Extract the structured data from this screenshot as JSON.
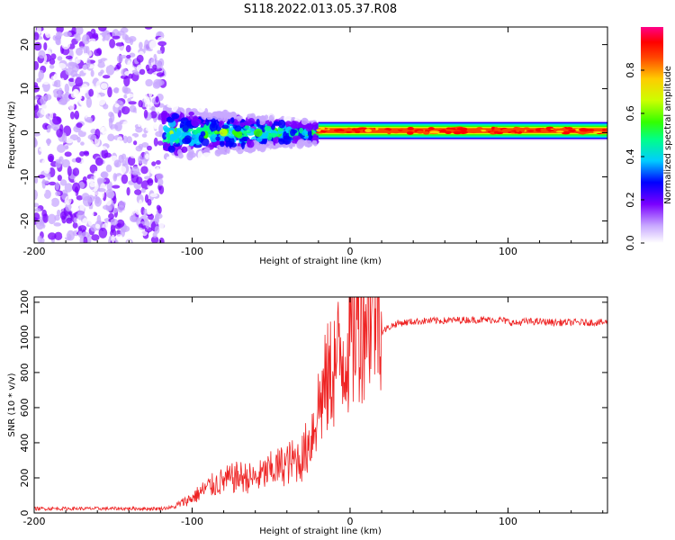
{
  "title": "S118.2022.013.05.37.R08",
  "chart_data": [
    {
      "type": "heatmap",
      "name": "spectrogram",
      "xlabel": "Height of straight line (km)",
      "ylabel": "Frequency (Hz)",
      "xlim": [
        -200,
        163
      ],
      "ylim": [
        -25,
        24
      ],
      "xticks": [
        -200,
        -100,
        0,
        100
      ],
      "xtick_labels": [
        "-200",
        "-100",
        "0",
        "100"
      ],
      "yticks": [
        -20,
        -10,
        0,
        10,
        20
      ],
      "ytick_labels": [
        "-20",
        "-10",
        "0",
        "10",
        "20"
      ],
      "colorbar": {
        "label": "Normalized spectral amplitude",
        "range": [
          0,
          1
        ],
        "ticks": [
          0.0,
          0.2,
          0.4,
          0.6,
          0.8
        ],
        "tick_labels": [
          "0.0",
          "0.2",
          "0.4",
          "0.6",
          "0.8"
        ],
        "colors": [
          "#ffffff",
          "#c8a8ff",
          "#7a00ff",
          "#0000ff",
          "#00ccff",
          "#00ff88",
          "#33ff00",
          "#ccff00",
          "#ffcc00",
          "#ff4400",
          "#ff0000",
          "#ff0088"
        ]
      },
      "regions": [
        {
          "x": [
            -200,
            -118
          ],
          "description_level": 0.12,
          "freq_spread": 24
        },
        {
          "x": [
            -118,
            -20
          ],
          "description_level": 0.35,
          "freq_spread": 6
        },
        {
          "x": [
            -20,
            163
          ],
          "description_level": 0.75,
          "freq_spread": 1.5
        }
      ]
    },
    {
      "type": "line",
      "name": "snr",
      "xlabel": "Height of straight line (km)",
      "ylabel": "SNR (10 * v/v)",
      "xlim": [
        -200,
        163
      ],
      "ylim": [
        0,
        1230
      ],
      "xticks": [
        -200,
        -100,
        0,
        100
      ],
      "xtick_labels": [
        "-200",
        "-100",
        "0",
        "100"
      ],
      "yticks": [
        0,
        200,
        400,
        600,
        800,
        1000,
        1200
      ],
      "ytick_labels": [
        "0",
        "200",
        "400",
        "600",
        "800",
        "1000",
        "1200"
      ],
      "color": "#ee2222",
      "x": [
        -200,
        -150,
        -120,
        -110,
        -100,
        -90,
        -80,
        -70,
        -60,
        -50,
        -40,
        -30,
        -25,
        -20,
        -15,
        -10,
        -5,
        0,
        5,
        10,
        15,
        20,
        25,
        30,
        40,
        50,
        60,
        70,
        80,
        90,
        95,
        100,
        105,
        110,
        120,
        130,
        140,
        150,
        163
      ],
      "values": [
        25,
        25,
        25,
        35,
        70,
        120,
        150,
        170,
        160,
        200,
        230,
        260,
        350,
        500,
        600,
        690,
        740,
        810,
        900,
        960,
        1000,
        1030,
        1060,
        1080,
        1090,
        1095,
        1095,
        1100,
        1100,
        1100,
        1100,
        1090,
        1080,
        1090,
        1090,
        1085,
        1085,
        1085,
        1085
      ]
    }
  ]
}
